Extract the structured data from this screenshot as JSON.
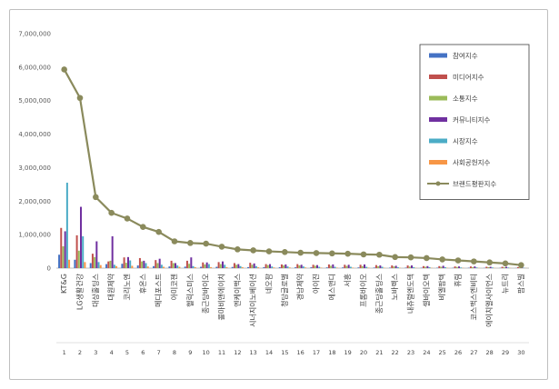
{
  "chart_data": {
    "type": "bar",
    "title": "",
    "xlabel": "",
    "ylabel": "",
    "ylim": [
      0,
      7000000
    ],
    "yticks": [
      "0",
      "1,000,000",
      "2,000,000",
      "3,000,000",
      "4,000,000",
      "5,000,000",
      "6,000,000",
      "7,000,000"
    ],
    "grid": false,
    "legend_position": "top-right",
    "numbers": [
      "1",
      "2",
      "3",
      "4",
      "5",
      "6",
      "7",
      "8",
      "9",
      "10",
      "11",
      "12",
      "13",
      "14",
      "15",
      "16",
      "17",
      "18",
      "19",
      "20",
      "21",
      "22",
      "23",
      "24",
      "25",
      "26",
      "27",
      "28",
      "29",
      "30"
    ],
    "categories": [
      "KT&G",
      "LG생활건강",
      "대상홀딩스",
      "대원제약",
      "코리노엔",
      "휴온스",
      "메디포스트",
      "아미코젠",
      "헬릭스미스",
      "종근당바이오",
      "콜마비앤에이치",
      "엔케이맥스",
      "시너지이노베이션",
      "네오팜",
      "청담글로벌",
      "경남제약",
      "아이진",
      "에스앤디",
      "서흥",
      "프롬바이오",
      "종근당홀딩스",
      "노바렉스",
      "내츄럴엔도텍",
      "셀바이오텍",
      "비엘팜텍",
      "휴림",
      "코스맥스엔비티",
      "에이치엘사이언스",
      "뉴트리",
      "팜스빌"
    ],
    "series": [
      {
        "name": "참여지수",
        "color": "#4472c4",
        "type": "bar",
        "values": [
          400000,
          250000,
          150000,
          120000,
          130000,
          80000,
          60000,
          50000,
          45000,
          40000,
          40000,
          35000,
          30000,
          30000,
          28000,
          25000,
          25000,
          22000,
          20000,
          20000,
          18000,
          15000,
          15000,
          12000,
          12000,
          10000,
          10000,
          8000,
          8000,
          5000
        ]
      },
      {
        "name": "미디어지수",
        "color": "#c0504d",
        "type": "bar",
        "values": [
          1200000,
          980000,
          430000,
          200000,
          320000,
          300000,
          240000,
          220000,
          220000,
          170000,
          180000,
          150000,
          160000,
          120000,
          110000,
          120000,
          100000,
          110000,
          100000,
          100000,
          90000,
          80000,
          80000,
          60000,
          60000,
          50000,
          50000,
          40000,
          40000,
          30000
        ]
      },
      {
        "name": "소통지수",
        "color": "#9bbb59",
        "type": "bar",
        "values": [
          650000,
          520000,
          330000,
          220000,
          160000,
          200000,
          150000,
          150000,
          130000,
          110000,
          120000,
          100000,
          100000,
          90000,
          80000,
          80000,
          70000,
          70000,
          65000,
          60000,
          55000,
          50000,
          45000,
          40000,
          40000,
          35000,
          30000,
          30000,
          25000,
          20000
        ]
      },
      {
        "name": "커뮤니티지수",
        "color": "#7030a0",
        "type": "bar",
        "values": [
          1100000,
          1830000,
          800000,
          950000,
          330000,
          220000,
          280000,
          150000,
          320000,
          170000,
          200000,
          120000,
          140000,
          120000,
          110000,
          100000,
          90000,
          110000,
          100000,
          110000,
          80000,
          70000,
          80000,
          60000,
          70000,
          50000,
          50000,
          40000,
          40000,
          30000
        ]
      },
      {
        "name": "시장지수",
        "color": "#4bacc6",
        "type": "bar",
        "values": [
          2550000,
          950000,
          180000,
          100000,
          230000,
          150000,
          100000,
          80000,
          60000,
          120000,
          100000,
          60000,
          60000,
          50000,
          50000,
          50000,
          40000,
          40000,
          40000,
          40000,
          40000,
          30000,
          30000,
          30000,
          30000,
          20000,
          20000,
          20000,
          20000,
          10000
        ]
      },
      {
        "name": "사회공헌지수",
        "color": "#f79646",
        "type": "bar",
        "values": [
          250000,
          180000,
          90000,
          60000,
          70000,
          50000,
          40000,
          40000,
          30000,
          30000,
          30000,
          30000,
          25000,
          20000,
          20000,
          20000,
          15000,
          15000,
          15000,
          15000,
          12000,
          10000,
          10000,
          10000,
          10000,
          8000,
          8000,
          6000,
          6000,
          5000
        ]
      },
      {
        "name": "브랜드평판지수",
        "color": "#8a8a5c",
        "type": "line",
        "values": [
          5930000,
          5080000,
          2120000,
          1650000,
          1480000,
          1230000,
          1080000,
          800000,
          750000,
          730000,
          640000,
          560000,
          530000,
          500000,
          480000,
          460000,
          450000,
          440000,
          430000,
          410000,
          400000,
          330000,
          320000,
          300000,
          260000,
          230000,
          200000,
          170000,
          140000,
          90000
        ]
      }
    ]
  }
}
